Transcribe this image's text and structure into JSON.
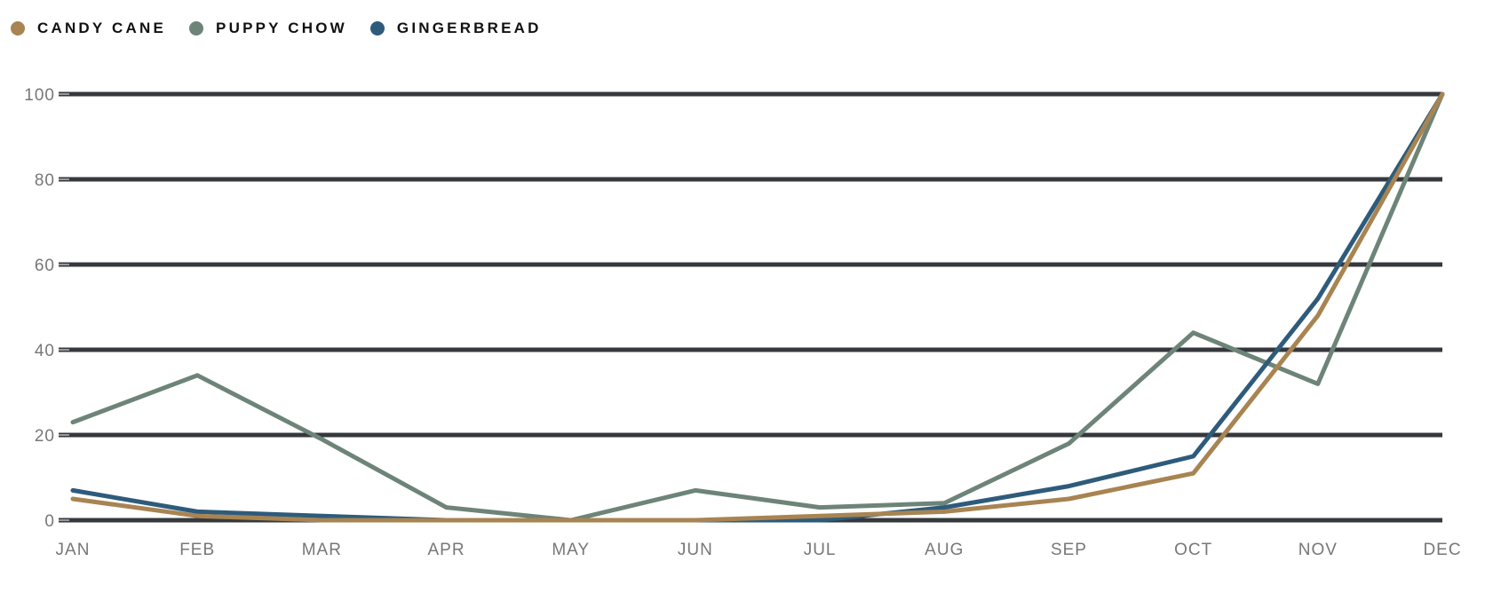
{
  "legend": {
    "items": [
      {
        "label": "CANDY CANE",
        "color": "#a88452"
      },
      {
        "label": "PUPPY CHOW",
        "color": "#6d8478"
      },
      {
        "label": "GINGERBREAD",
        "color": "#2e5b7b"
      }
    ]
  },
  "chart_data": {
    "type": "line",
    "title": "",
    "xlabel": "",
    "ylabel": "",
    "categories": [
      "JAN",
      "FEB",
      "MAR",
      "APR",
      "MAY",
      "JUN",
      "JUL",
      "AUG",
      "SEP",
      "OCT",
      "NOV",
      "DEC"
    ],
    "ylim": [
      0,
      100
    ],
    "yticks": [
      0,
      20,
      40,
      60,
      80,
      100
    ],
    "grid": true,
    "legend_position": "top-left",
    "series": [
      {
        "name": "PUPPY CHOW",
        "color": "#6d8478",
        "values": [
          23,
          34,
          19,
          3,
          0,
          7,
          3,
          4,
          18,
          44,
          32,
          100
        ]
      },
      {
        "name": "GINGERBREAD",
        "color": "#2e5b7b",
        "values": [
          7,
          2,
          1,
          0,
          0,
          0,
          0,
          3,
          8,
          15,
          52,
          100
        ]
      },
      {
        "name": "CANDY CANE",
        "color": "#a88452",
        "values": [
          5,
          1,
          0,
          0,
          0,
          0,
          1,
          2,
          5,
          11,
          48,
          100
        ]
      }
    ]
  }
}
